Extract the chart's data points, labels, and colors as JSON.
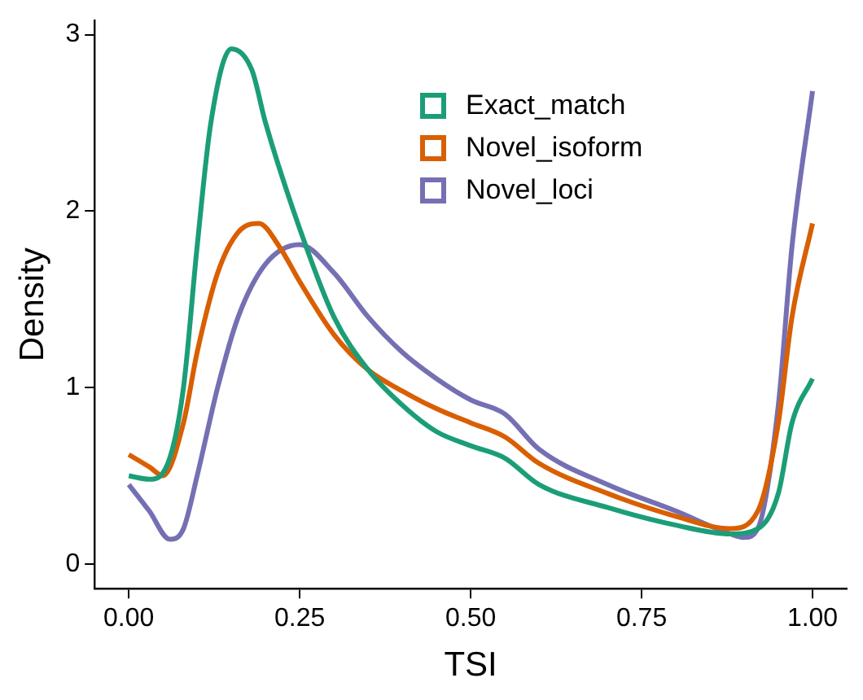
{
  "chart_data": {
    "type": "line",
    "xlabel": "TSI",
    "ylabel": "Density",
    "xlim": [
      -0.05,
      1.05
    ],
    "ylim": [
      -0.14,
      3.08
    ],
    "xticks": [
      {
        "value": 0,
        "label": "0.00"
      },
      {
        "value": 0.25,
        "label": "0.25"
      },
      {
        "value": 0.5,
        "label": "0.50"
      },
      {
        "value": 0.75,
        "label": "0.75"
      },
      {
        "value": 1,
        "label": "1.00"
      }
    ],
    "yticks": [
      0,
      1,
      2,
      3
    ],
    "legend": "top right",
    "marker": "none",
    "series": [
      {
        "name": "Exact_match",
        "color": "#1b9e77",
        "x": [
          0,
          0.03,
          0.06,
          0.08,
          0.1,
          0.12,
          0.15,
          0.18,
          0.2,
          0.25,
          0.3,
          0.35,
          0.4,
          0.45,
          0.5,
          0.55,
          0.6,
          0.7,
          0.8,
          0.88,
          0.92,
          0.95,
          0.97,
          1
        ],
        "values": [
          0.5,
          0.48,
          0.6,
          1.0,
          1.8,
          2.5,
          2.92,
          2.8,
          2.5,
          1.9,
          1.4,
          1.1,
          0.9,
          0.75,
          0.67,
          0.6,
          0.45,
          0.32,
          0.22,
          0.17,
          0.2,
          0.4,
          0.8,
          1.05
        ]
      },
      {
        "name": "Novel_isoform",
        "color": "#d95f02",
        "x": [
          0,
          0.03,
          0.05,
          0.08,
          0.1,
          0.13,
          0.16,
          0.19,
          0.22,
          0.25,
          0.3,
          0.35,
          0.4,
          0.45,
          0.5,
          0.55,
          0.6,
          0.7,
          0.8,
          0.88,
          0.92,
          0.95,
          0.97,
          1
        ],
        "values": [
          0.62,
          0.55,
          0.5,
          0.8,
          1.2,
          1.65,
          1.88,
          1.93,
          1.8,
          1.6,
          1.3,
          1.1,
          0.98,
          0.88,
          0.8,
          0.72,
          0.57,
          0.4,
          0.27,
          0.2,
          0.3,
          0.8,
          1.4,
          1.93
        ]
      },
      {
        "name": "Novel_loci",
        "color": "#7570b3",
        "x": [
          0,
          0.03,
          0.06,
          0.08,
          0.1,
          0.13,
          0.16,
          0.2,
          0.25,
          0.3,
          0.35,
          0.4,
          0.45,
          0.5,
          0.55,
          0.6,
          0.7,
          0.8,
          0.88,
          0.9,
          0.92,
          0.95,
          0.97,
          1
        ],
        "values": [
          0.45,
          0.3,
          0.14,
          0.2,
          0.5,
          1.0,
          1.4,
          1.7,
          1.81,
          1.65,
          1.4,
          1.2,
          1.05,
          0.93,
          0.85,
          0.65,
          0.45,
          0.3,
          0.17,
          0.15,
          0.2,
          0.9,
          1.8,
          2.68
        ]
      }
    ]
  }
}
